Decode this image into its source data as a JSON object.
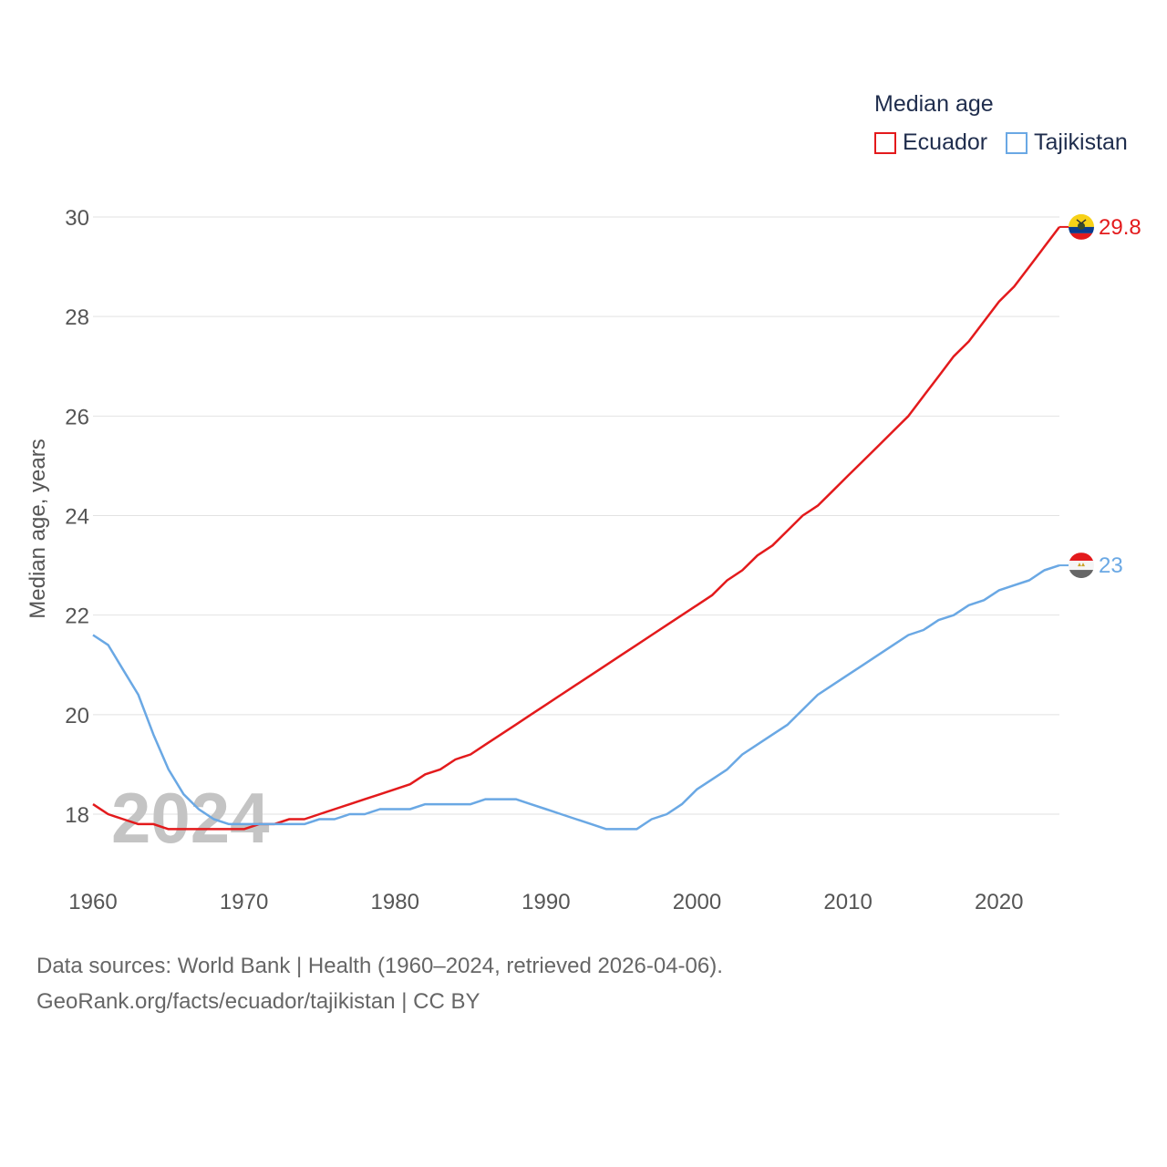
{
  "legend": {
    "title": "Median age",
    "items": [
      {
        "label": "Ecuador",
        "color": "#e31a1c"
      },
      {
        "label": "Tajikistan",
        "color": "#6aa8e4"
      }
    ]
  },
  "footer": {
    "line1": "Data sources: World Bank | Health (1960–2024, retrieved 2026-04-06).",
    "line2": "GeoRank.org/facts/ecuador/tajikistan | CC BY"
  },
  "chart_data": {
    "type": "line",
    "title": "Median age",
    "xlabel": "",
    "ylabel": "Median age, years",
    "watermark_year": "2024",
    "xlim": [
      1960,
      2024
    ],
    "ylim": [
      17.1,
      30.3
    ],
    "x_ticks": [
      1960,
      1970,
      1980,
      1990,
      2000,
      2010,
      2020
    ],
    "y_ticks": [
      18,
      20,
      22,
      24,
      26,
      28,
      30
    ],
    "grid": true,
    "legend_position": "top-right",
    "x": [
      1960,
      1961,
      1962,
      1963,
      1964,
      1965,
      1966,
      1967,
      1968,
      1969,
      1970,
      1971,
      1972,
      1973,
      1974,
      1975,
      1976,
      1977,
      1978,
      1979,
      1980,
      1981,
      1982,
      1983,
      1984,
      1985,
      1986,
      1987,
      1988,
      1989,
      1990,
      1991,
      1992,
      1993,
      1994,
      1995,
      1996,
      1997,
      1998,
      1999,
      2000,
      2001,
      2002,
      2003,
      2004,
      2005,
      2006,
      2007,
      2008,
      2009,
      2010,
      2011,
      2012,
      2013,
      2014,
      2015,
      2016,
      2017,
      2018,
      2019,
      2020,
      2021,
      2022,
      2023,
      2024
    ],
    "series": [
      {
        "name": "Ecuador",
        "color": "#e31a1c",
        "end_label": "29.8",
        "values": [
          18.2,
          18.0,
          17.9,
          17.8,
          17.8,
          17.7,
          17.7,
          17.7,
          17.7,
          17.7,
          17.7,
          17.8,
          17.8,
          17.9,
          17.9,
          18.0,
          18.1,
          18.2,
          18.3,
          18.4,
          18.5,
          18.6,
          18.8,
          18.9,
          19.1,
          19.2,
          19.4,
          19.6,
          19.8,
          20.0,
          20.2,
          20.4,
          20.6,
          20.8,
          21.0,
          21.2,
          21.4,
          21.6,
          21.8,
          22.0,
          22.2,
          22.4,
          22.7,
          22.9,
          23.2,
          23.4,
          23.7,
          24.0,
          24.2,
          24.5,
          24.8,
          25.1,
          25.4,
          25.7,
          26.0,
          26.4,
          26.8,
          27.2,
          27.5,
          27.9,
          28.3,
          28.6,
          29.0,
          29.4,
          29.8
        ]
      },
      {
        "name": "Tajikistan",
        "color": "#6aa8e4",
        "end_label": "23",
        "values": [
          21.6,
          21.4,
          20.9,
          20.4,
          19.6,
          18.9,
          18.4,
          18.1,
          17.9,
          17.8,
          17.8,
          17.8,
          17.8,
          17.8,
          17.8,
          17.9,
          17.9,
          18.0,
          18.0,
          18.1,
          18.1,
          18.1,
          18.2,
          18.2,
          18.2,
          18.2,
          18.3,
          18.3,
          18.3,
          18.2,
          18.1,
          18.0,
          17.9,
          17.8,
          17.7,
          17.7,
          17.7,
          17.9,
          18.0,
          18.2,
          18.5,
          18.7,
          18.9,
          19.2,
          19.4,
          19.6,
          19.8,
          20.1,
          20.4,
          20.6,
          20.8,
          21.0,
          21.2,
          21.4,
          21.6,
          21.7,
          21.9,
          22.0,
          22.2,
          22.3,
          22.5,
          22.6,
          22.7,
          22.9,
          23.0
        ]
      }
    ]
  }
}
